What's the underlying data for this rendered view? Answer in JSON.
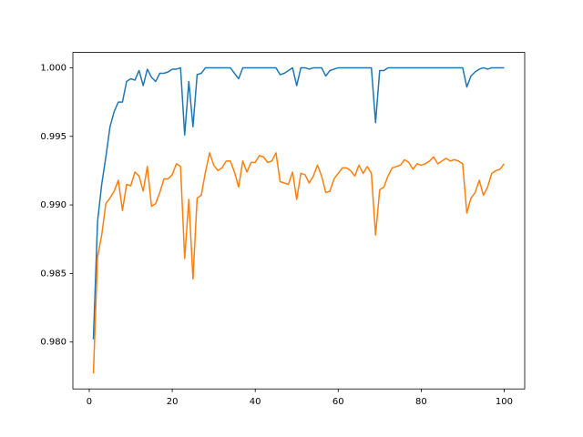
{
  "chart_data": {
    "type": "line",
    "x": [
      1,
      2,
      3,
      4,
      5,
      6,
      7,
      8,
      9,
      10,
      11,
      12,
      13,
      14,
      15,
      16,
      17,
      18,
      19,
      20,
      21,
      22,
      23,
      24,
      25,
      26,
      27,
      28,
      29,
      30,
      31,
      32,
      33,
      34,
      35,
      36,
      37,
      38,
      39,
      40,
      41,
      42,
      43,
      44,
      45,
      46,
      47,
      48,
      49,
      50,
      51,
      52,
      53,
      54,
      55,
      56,
      57,
      58,
      59,
      60,
      61,
      62,
      63,
      64,
      65,
      66,
      67,
      68,
      69,
      70,
      71,
      72,
      73,
      74,
      75,
      76,
      77,
      78,
      79,
      80,
      81,
      82,
      83,
      84,
      85,
      86,
      87,
      88,
      89,
      90,
      91,
      92,
      93,
      94,
      95,
      96,
      97,
      98,
      99,
      100
    ],
    "series": [
      {
        "color": "#1f77b4",
        "values": [
          0.9802,
          0.9888,
          0.9915,
          0.9935,
          0.9957,
          0.9968,
          0.9975,
          0.9975,
          0.999,
          0.9992,
          0.9991,
          0.9998,
          0.9987,
          0.9999,
          0.9993,
          0.999,
          0.9996,
          0.9996,
          0.9997,
          0.9999,
          0.9999,
          1.0,
          0.9951,
          0.999,
          0.9957,
          0.9995,
          0.9996,
          1.0,
          1.0,
          1.0,
          1.0,
          1.0,
          1.0,
          1.0,
          0.9996,
          0.9992,
          1.0,
          1.0,
          1.0,
          1.0,
          1.0,
          1.0,
          1.0,
          1.0,
          1.0,
          0.9995,
          0.9996,
          0.9998,
          1.0,
          0.9987,
          1.0,
          1.0,
          0.9999,
          1.0,
          1.0,
          1.0,
          0.9994,
          0.9998,
          0.9999,
          1.0,
          1.0,
          1.0,
          1.0,
          1.0,
          1.0,
          1.0,
          1.0,
          1.0,
          0.996,
          0.9998,
          0.9998,
          1.0,
          1.0,
          1.0,
          1.0,
          1.0,
          1.0,
          1.0,
          1.0,
          1.0,
          1.0,
          1.0,
          1.0,
          1.0,
          1.0,
          1.0,
          1.0,
          1.0,
          1.0,
          1.0,
          0.9986,
          0.9994,
          0.9997,
          0.9999,
          1.0,
          0.9999,
          1.0,
          1.0,
          1.0,
          1.0
        ]
      },
      {
        "color": "#ff7f0e",
        "values": [
          0.9777,
          0.9862,
          0.9878,
          0.9901,
          0.9905,
          0.991,
          0.9918,
          0.9896,
          0.9915,
          0.9914,
          0.9924,
          0.9921,
          0.991,
          0.9928,
          0.9899,
          0.9901,
          0.9909,
          0.9919,
          0.9919,
          0.9922,
          0.993,
          0.9928,
          0.9861,
          0.9904,
          0.9846,
          0.9905,
          0.9907,
          0.9924,
          0.9938,
          0.9929,
          0.9925,
          0.9927,
          0.9932,
          0.9932,
          0.9924,
          0.9913,
          0.9932,
          0.9924,
          0.9931,
          0.9931,
          0.9936,
          0.9935,
          0.9931,
          0.9932,
          0.9938,
          0.9917,
          0.9916,
          0.9915,
          0.9924,
          0.9904,
          0.9923,
          0.9922,
          0.9916,
          0.9921,
          0.9929,
          0.9921,
          0.9909,
          0.991,
          0.9919,
          0.9923,
          0.9927,
          0.9927,
          0.9925,
          0.9921,
          0.9929,
          0.9923,
          0.9928,
          0.9923,
          0.9878,
          0.9911,
          0.9913,
          0.9921,
          0.9927,
          0.9928,
          0.9929,
          0.9933,
          0.9931,
          0.9926,
          0.993,
          0.9929,
          0.993,
          0.9932,
          0.9935,
          0.993,
          0.9932,
          0.9934,
          0.9932,
          0.9933,
          0.9932,
          0.993,
          0.9894,
          0.9905,
          0.9909,
          0.9918,
          0.9907,
          0.9913,
          0.9923,
          0.9925,
          0.9926,
          0.993
        ]
      }
    ],
    "xlim": [
      -3.95,
      104.95
    ],
    "xticks": [
      0,
      20,
      40,
      60,
      80,
      100
    ],
    "ylim": [
      0.97658,
      1.00112
    ],
    "yticks": [
      {
        "value": 0.98,
        "label": "0.980"
      },
      {
        "value": 0.985,
        "label": "0.985"
      },
      {
        "value": 0.99,
        "label": "0.990"
      },
      {
        "value": 0.995,
        "label": "0.995"
      },
      {
        "value": 1.0,
        "label": "1.000"
      }
    ]
  }
}
